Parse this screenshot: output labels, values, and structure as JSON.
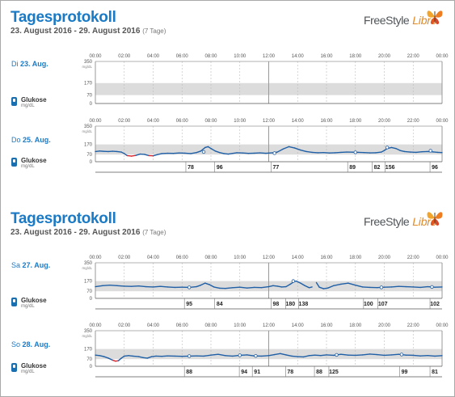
{
  "report_title": "Tagesprotokoll",
  "date_range": "23. August 2016 - 29. August 2016",
  "days_note": "(7 Tage)",
  "logo": {
    "brand": "FreeStyle",
    "product": "Libre"
  },
  "hour_labels": [
    "00:00",
    "02:00",
    "04:00",
    "06:00",
    "08:00",
    "10:00",
    "12:00",
    "14:00",
    "16:00",
    "18:00",
    "20:00",
    "22:00",
    "00:00"
  ],
  "y_ticks": [
    "350",
    "170",
    "70",
    "0"
  ],
  "y_unit": "mg/dL",
  "legend": {
    "label": "Glukose",
    "unit": "mg/dL"
  },
  "colors": {
    "accent": "#1a7ac5",
    "glucose_line": "#1f5fa6",
    "low_glucose": "#d9262c",
    "target_band": "#dcdcdc"
  },
  "chart_data": [
    {
      "type": "line",
      "day": "Di",
      "date": "23. Aug.",
      "ylim": [
        0,
        350
      ],
      "target_range": [
        70,
        170
      ],
      "series": [],
      "markers": [],
      "scan_values": []
    },
    {
      "type": "line",
      "day": "Do",
      "date": "25. Aug.",
      "ylim": [
        0,
        350
      ],
      "target_range": [
        70,
        170
      ],
      "series": [
        {
          "x": [
            0,
            0.3,
            0.6,
            0.9,
            1.2,
            1.5,
            1.8,
            2.0,
            2.2,
            2.5,
            2.8,
            3.1,
            3.4,
            3.7,
            4.0,
            4.3,
            4.6,
            5.0,
            5.4,
            5.8,
            6.2,
            6.6,
            7.0,
            7.3,
            7.6,
            7.8,
            8.0,
            8.3,
            8.6,
            8.9,
            9.2,
            9.5,
            9.8,
            10.2,
            10.6,
            11.0,
            11.4,
            11.8,
            12.0,
            12.3,
            12.6,
            13.0,
            13.4,
            13.8,
            14.2,
            14.6,
            15.0,
            15.4,
            15.8,
            16.2,
            16.6,
            17.0,
            17.4,
            17.8,
            18.2,
            18.6,
            19.0,
            19.4,
            19.8,
            20.0,
            20.2,
            20.5,
            20.8,
            21.1,
            21.4,
            21.8,
            22.2,
            22.6,
            23.0,
            23.4,
            23.7,
            24.0
          ],
          "y": [
            100,
            105,
            102,
            100,
            103,
            100,
            95,
            80,
            60,
            55,
            62,
            75,
            72,
            60,
            58,
            70,
            80,
            83,
            82,
            86,
            84,
            80,
            90,
            105,
            140,
            148,
            130,
            105,
            90,
            80,
            75,
            82,
            88,
            86,
            82,
            84,
            87,
            83,
            85,
            88,
            95,
            125,
            148,
            135,
            115,
            100,
            92,
            88,
            90,
            86,
            88,
            92,
            95,
            94,
            92,
            90,
            87,
            88,
            95,
            110,
            130,
            140,
            130,
            110,
            100,
            95,
            92,
            98,
            100,
            96,
            92,
            90
          ]
        }
      ],
      "markers": [
        {
          "x": 7.5,
          "y": 96
        },
        {
          "x": 12.4,
          "y": 84
        },
        {
          "x": 18.0,
          "y": 92
        },
        {
          "x": 20.2,
          "y": 140
        },
        {
          "x": 23.2,
          "y": 108
        }
      ],
      "scan_values": [
        {
          "x": 6.6,
          "value": "78"
        },
        {
          "x": 8.6,
          "value": "96"
        },
        {
          "x": 12.5,
          "value": "77"
        },
        {
          "x": 17.8,
          "value": "89"
        },
        {
          "x": 19.5,
          "value": "82"
        },
        {
          "x": 20.4,
          "value": "156"
        },
        {
          "x": 23.5,
          "value": "96"
        }
      ]
    },
    {
      "type": "line",
      "day": "Sa",
      "date": "27. Aug.",
      "ylim": [
        0,
        350
      ],
      "target_range": [
        70,
        170
      ],
      "series": [
        {
          "x": [
            0,
            0.5,
            1.0,
            1.5,
            2.0,
            2.5,
            3.0,
            3.5,
            4.0,
            4.5,
            5.0,
            5.5,
            6.0,
            6.5,
            7.0,
            7.3,
            7.6,
            7.9,
            8.2,
            8.6,
            9.0,
            9.5,
            10.0,
            10.5,
            11.0,
            11.5,
            12.0,
            12.3,
            12.6,
            12.9,
            13.2,
            13.5,
            13.7,
            13.9,
            14.2,
            14.5,
            14.8,
            15.0
          ],
          "y": [
            115,
            125,
            130,
            125,
            120,
            118,
            122,
            115,
            112,
            118,
            112,
            108,
            110,
            108,
            115,
            130,
            150,
            135,
            112,
            100,
            98,
            105,
            110,
            102,
            108,
            106,
            115,
            125,
            120,
            112,
            115,
            140,
            160,
            170,
            150,
            125,
            105,
            112
          ]
        },
        {
          "x": [
            15.3,
            15.5,
            15.8,
            16.1,
            16.5,
            17.0,
            17.5,
            18.0,
            18.5,
            19.0,
            19.5,
            20.0,
            20.5,
            21.0,
            21.5,
            22.0,
            22.5,
            23.0,
            23.5,
            24.0
          ],
          "y": [
            155,
            110,
            95,
            102,
            125,
            140,
            150,
            130,
            112,
            108,
            106,
            110,
            112,
            118,
            115,
            112,
            108,
            115,
            110,
            112
          ]
        }
      ],
      "markers": [
        {
          "x": 6.5,
          "y": 108
        },
        {
          "x": 13.7,
          "y": 170
        },
        {
          "x": 19.8,
          "y": 108
        },
        {
          "x": 23.3,
          "y": 112
        }
      ],
      "scan_values": [
        {
          "x": 6.5,
          "value": "95"
        },
        {
          "x": 8.6,
          "value": "84"
        },
        {
          "x": 12.5,
          "value": "98"
        },
        {
          "x": 13.5,
          "value": "180"
        },
        {
          "x": 14.4,
          "value": "138"
        },
        {
          "x": 18.9,
          "value": "100"
        },
        {
          "x": 19.9,
          "value": "107"
        },
        {
          "x": 23.5,
          "value": "102"
        }
      ]
    },
    {
      "type": "line",
      "day": "So",
      "date": "28. Aug.",
      "ylim": [
        0,
        350
      ],
      "target_range": [
        70,
        170
      ],
      "series": [
        {
          "x": [
            0,
            0.3,
            0.6,
            0.9,
            1.2,
            1.4,
            1.6,
            1.8,
            2.0,
            2.3,
            2.6,
            3.0,
            3.3,
            3.6,
            3.9,
            4.2,
            4.6,
            5.0,
            5.5,
            6.0,
            6.5,
            7.0,
            7.5,
            8.0,
            8.5,
            9.0,
            9.5,
            10.0,
            10.5,
            11.0,
            11.5,
            12.0,
            12.4,
            12.8,
            13.2,
            13.6,
            14.0,
            14.4,
            14.8,
            15.2,
            15.6,
            16.0,
            16.5,
            17.0,
            17.5,
            18.0,
            18.5,
            19.0,
            19.5,
            20.0,
            20.5,
            21.0,
            21.5,
            22.0,
            22.5,
            23.0,
            23.5,
            24.0
          ],
          "y": [
            110,
            105,
            95,
            80,
            60,
            50,
            55,
            80,
            100,
            105,
            100,
            95,
            85,
            80,
            95,
            100,
            98,
            102,
            100,
            98,
            100,
            102,
            100,
            110,
            118,
            105,
            100,
            108,
            112,
            102,
            100,
            105,
            115,
            125,
            112,
            100,
            95,
            92,
            105,
            110,
            106,
            112,
            108,
            118,
            110,
            108,
            112,
            120,
            115,
            108,
            112,
            118,
            110,
            108,
            102,
            106,
            100,
            105
          ]
        }
      ],
      "markers": [
        {
          "x": 6.5,
          "y": 100
        },
        {
          "x": 10.0,
          "y": 108
        },
        {
          "x": 11.1,
          "y": 102
        },
        {
          "x": 16.7,
          "y": 112
        },
        {
          "x": 21.2,
          "y": 116
        }
      ],
      "scan_values": [
        {
          "x": 6.5,
          "value": "88"
        },
        {
          "x": 10.3,
          "value": "94"
        },
        {
          "x": 11.2,
          "value": "91"
        },
        {
          "x": 13.5,
          "value": "78"
        },
        {
          "x": 15.5,
          "value": "88"
        },
        {
          "x": 16.5,
          "value": "125"
        },
        {
          "x": 21.4,
          "value": "99"
        },
        {
          "x": 23.5,
          "value": "81"
        }
      ]
    }
  ]
}
